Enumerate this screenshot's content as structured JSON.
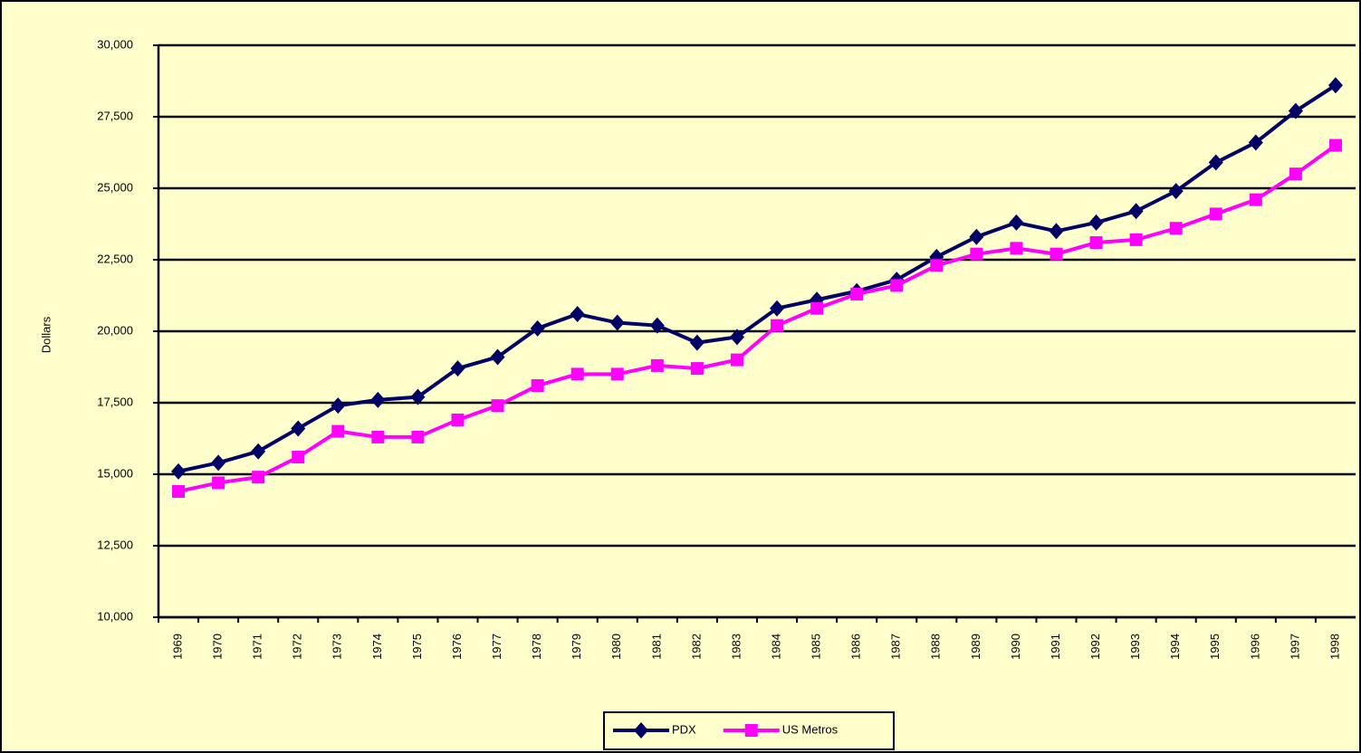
{
  "chart_data": {
    "type": "line",
    "y_label": "Dollars",
    "categories": [
      "1969",
      "1970",
      "1971",
      "1972",
      "1973",
      "1974",
      "1975",
      "1976",
      "1977",
      "1978",
      "1979",
      "1980",
      "1981",
      "1982",
      "1983",
      "1984",
      "1985",
      "1986",
      "1987",
      "1988",
      "1989",
      "1990",
      "1991",
      "1992",
      "1993",
      "1994",
      "1995",
      "1996",
      "1997",
      "1998"
    ],
    "series": [
      {
        "name": "PDX",
        "color": "#000066",
        "marker": "diamond",
        "values": [
          15100,
          15400,
          15800,
          16600,
          17400,
          17600,
          17700,
          18700,
          19100,
          20100,
          20600,
          20300,
          20200,
          19600,
          19800,
          20800,
          21100,
          21400,
          21800,
          22600,
          23300,
          23800,
          23500,
          23800,
          24200,
          24900,
          25900,
          26600,
          27700,
          28600
        ]
      },
      {
        "name": "US Metros",
        "color": "#ff00ff",
        "marker": "square",
        "values": [
          14400,
          14700,
          14900,
          15600,
          16500,
          16300,
          16300,
          16900,
          17400,
          18100,
          18500,
          18500,
          18800,
          18700,
          19000,
          20200,
          20800,
          21300,
          21600,
          22300,
          22700,
          22900,
          22700,
          23100,
          23200,
          23600,
          24100,
          24600,
          25500,
          26500
        ]
      }
    ],
    "ylim": [
      10000,
      30000
    ],
    "yticks": [
      {
        "value": 10000,
        "label": "10,000"
      },
      {
        "value": 12500,
        "label": "12,500"
      },
      {
        "value": 15000,
        "label": "15,000"
      },
      {
        "value": 17500,
        "label": "17,500"
      },
      {
        "value": 20000,
        "label": "20,000"
      },
      {
        "value": 22500,
        "label": "22,500"
      },
      {
        "value": 25000,
        "label": "25,000"
      },
      {
        "value": 27500,
        "label": "27,500"
      },
      {
        "value": 30000,
        "label": "30,000"
      }
    ],
    "grid": true,
    "legend": "bottom"
  }
}
